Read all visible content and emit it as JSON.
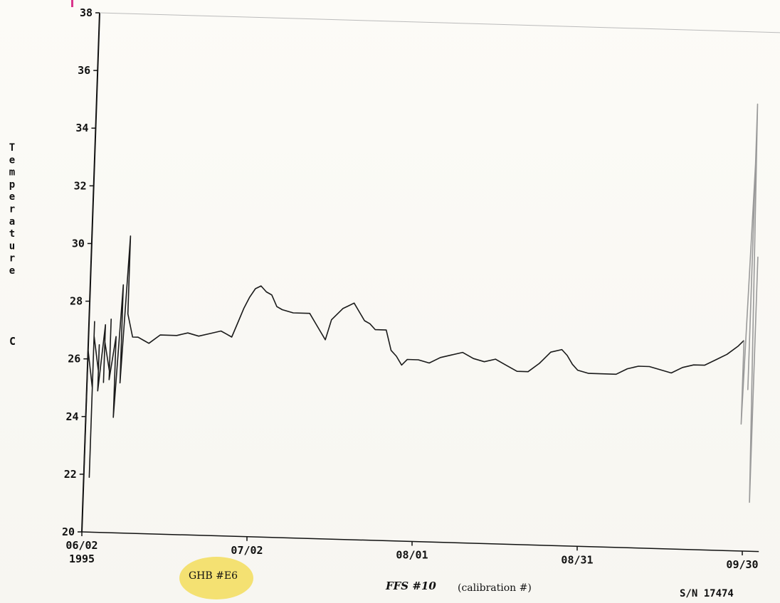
{
  "chart_data": {
    "type": "line",
    "title": "",
    "xlabel": "",
    "ylabel": "Temperature",
    "ylabel_unit": "C",
    "ylim": [
      20,
      38
    ],
    "y_ticks": [
      20,
      22,
      24,
      26,
      28,
      30,
      32,
      34,
      36,
      38
    ],
    "x_ticks": [
      {
        "label": "06/02",
        "sublabel": "1995",
        "date": "1995-06-02"
      },
      {
        "label": "07/02",
        "sublabel": "",
        "date": "1995-07-02"
      },
      {
        "label": "08/01",
        "sublabel": "",
        "date": "1995-08-01"
      },
      {
        "label": "08/31",
        "sublabel": "",
        "date": "1995-08-31"
      },
      {
        "label": "09/30",
        "sublabel": "",
        "date": "1995-09-30"
      }
    ],
    "grid": false,
    "series": [
      {
        "color": "#1a1a1a",
        "points": [
          [
            "1995-06-02",
            22.0
          ],
          [
            "1995-06-02",
            26.3
          ],
          [
            "1995-06-03",
            25.0
          ],
          [
            "1995-06-03",
            27.3
          ],
          [
            "1995-06-03",
            21.9
          ],
          [
            "1995-06-03",
            26.8
          ],
          [
            "1995-06-04",
            25.6
          ],
          [
            "1995-06-04",
            26.5
          ],
          [
            "1995-06-04",
            24.9
          ],
          [
            "1995-06-05",
            27.2
          ],
          [
            "1995-06-05",
            25.2
          ],
          [
            "1995-06-05",
            26.6
          ],
          [
            "1995-06-06",
            25.6
          ],
          [
            "1995-06-06",
            27.4
          ],
          [
            "1995-06-06",
            25.3
          ],
          [
            "1995-06-07",
            26.8
          ],
          [
            "1995-06-07",
            24.0
          ],
          [
            "1995-06-08",
            28.6
          ],
          [
            "1995-06-08",
            25.2
          ],
          [
            "1995-06-09",
            30.3
          ],
          [
            "1995-06-09",
            27.6
          ],
          [
            "1995-06-10",
            26.8
          ],
          [
            "1995-06-11",
            26.8
          ],
          [
            "1995-06-12",
            26.7
          ],
          [
            "1995-06-13",
            26.6
          ],
          [
            "1995-06-15",
            26.9
          ],
          [
            "1995-06-18",
            26.9
          ],
          [
            "1995-06-20",
            27.0
          ],
          [
            "1995-06-22",
            26.9
          ],
          [
            "1995-06-24",
            27.0
          ],
          [
            "1995-06-26",
            27.1
          ],
          [
            "1995-06-27",
            27.0
          ],
          [
            "1995-06-28",
            26.9
          ],
          [
            "1995-06-29",
            27.4
          ],
          [
            "1995-06-30",
            27.9
          ],
          [
            "1995-07-01",
            28.3
          ],
          [
            "1995-07-02",
            28.6
          ],
          [
            "1995-07-03",
            28.7
          ],
          [
            "1995-07-04",
            28.5
          ],
          [
            "1995-07-05",
            28.4
          ],
          [
            "1995-07-06",
            28.0
          ],
          [
            "1995-07-07",
            27.9
          ],
          [
            "1995-07-09",
            27.8
          ],
          [
            "1995-07-12",
            27.8
          ],
          [
            "1995-07-13",
            27.5
          ],
          [
            "1995-07-14",
            27.2
          ],
          [
            "1995-07-15",
            26.9
          ],
          [
            "1995-07-16",
            27.6
          ],
          [
            "1995-07-17",
            27.8
          ],
          [
            "1995-07-18",
            28.0
          ],
          [
            "1995-07-19",
            28.1
          ],
          [
            "1995-07-20",
            28.2
          ],
          [
            "1995-07-21",
            27.9
          ],
          [
            "1995-07-22",
            27.6
          ],
          [
            "1995-07-23",
            27.5
          ],
          [
            "1995-07-24",
            27.3
          ],
          [
            "1995-07-26",
            27.3
          ],
          [
            "1995-07-27",
            26.6
          ],
          [
            "1995-07-28",
            26.4
          ],
          [
            "1995-07-29",
            26.1
          ],
          [
            "1995-07-30",
            26.3
          ],
          [
            "1995-08-01",
            26.3
          ],
          [
            "1995-08-03",
            26.2
          ],
          [
            "1995-08-05",
            26.4
          ],
          [
            "1995-08-07",
            26.5
          ],
          [
            "1995-08-09",
            26.6
          ],
          [
            "1995-08-11",
            26.4
          ],
          [
            "1995-08-13",
            26.3
          ],
          [
            "1995-08-15",
            26.4
          ],
          [
            "1995-08-17",
            26.2
          ],
          [
            "1995-08-19",
            26.0
          ],
          [
            "1995-08-21",
            26.0
          ],
          [
            "1995-08-23",
            26.3
          ],
          [
            "1995-08-25",
            26.7
          ],
          [
            "1995-08-27",
            26.8
          ],
          [
            "1995-08-28",
            26.6
          ],
          [
            "1995-08-29",
            26.3
          ],
          [
            "1995-08-30",
            26.1
          ],
          [
            "1995-09-01",
            26.0
          ],
          [
            "1995-09-03",
            26.0
          ],
          [
            "1995-09-06",
            26.0
          ],
          [
            "1995-09-08",
            26.2
          ],
          [
            "1995-09-10",
            26.3
          ],
          [
            "1995-09-12",
            26.3
          ],
          [
            "1995-09-14",
            26.2
          ],
          [
            "1995-09-16",
            26.1
          ],
          [
            "1995-09-18",
            26.3
          ],
          [
            "1995-09-20",
            26.4
          ],
          [
            "1995-09-22",
            26.4
          ],
          [
            "1995-09-24",
            26.6
          ],
          [
            "1995-09-26",
            26.8
          ],
          [
            "1995-09-28",
            27.1
          ],
          [
            "1995-09-29",
            27.3
          ]
        ]
      },
      {
        "color": "#9a9a9a",
        "points": [
          [
            "1995-09-29",
            27.3
          ],
          [
            "1995-09-29",
            24.4
          ],
          [
            "1995-09-30",
            33.5
          ],
          [
            "1995-09-30",
            25.6
          ],
          [
            "1995-09-30",
            35.5
          ],
          [
            "1995-10-01",
            21.7
          ],
          [
            "1995-10-01",
            30.2
          ],
          [
            "1995-10-01",
            22.3
          ]
        ]
      }
    ]
  },
  "annotations": {
    "calibration_code": "FFS #10",
    "calibration_note": "(calibration #)",
    "handwritten_id": "GHB #E6",
    "serial_number": "S/N 17474"
  }
}
